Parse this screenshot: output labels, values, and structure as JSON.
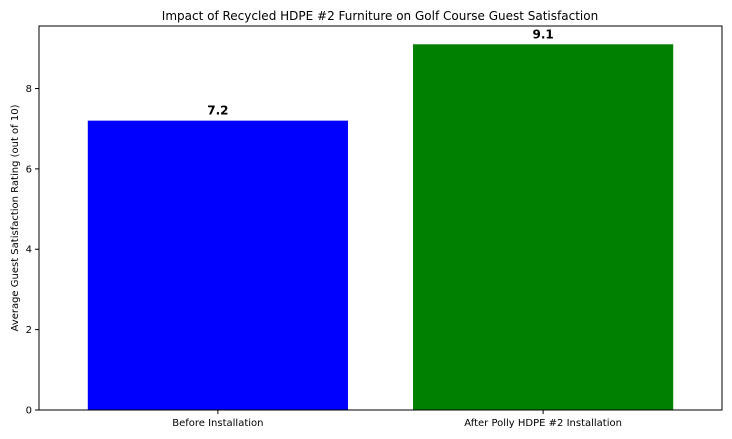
{
  "chart_data": {
    "type": "bar",
    "title": "Impact of Recycled HDPE #2 Furniture on Golf Course Guest Satisfaction",
    "xlabel": "",
    "ylabel": "Average Guest Satisfaction Rating (out of 10)",
    "categories": [
      "Before Installation",
      "After Polly HDPE #2 Installation"
    ],
    "values": [
      7.2,
      9.1
    ],
    "value_labels": [
      "7.2",
      "9.1"
    ],
    "colors": [
      "#0000ff",
      "#008000"
    ],
    "ylim": [
      0,
      9.555
    ],
    "yticks": [
      0,
      2,
      4,
      6,
      8
    ],
    "ytick_labels": [
      "0",
      "2",
      "4",
      "6",
      "8"
    ],
    "grid": false,
    "legend": "none"
  }
}
